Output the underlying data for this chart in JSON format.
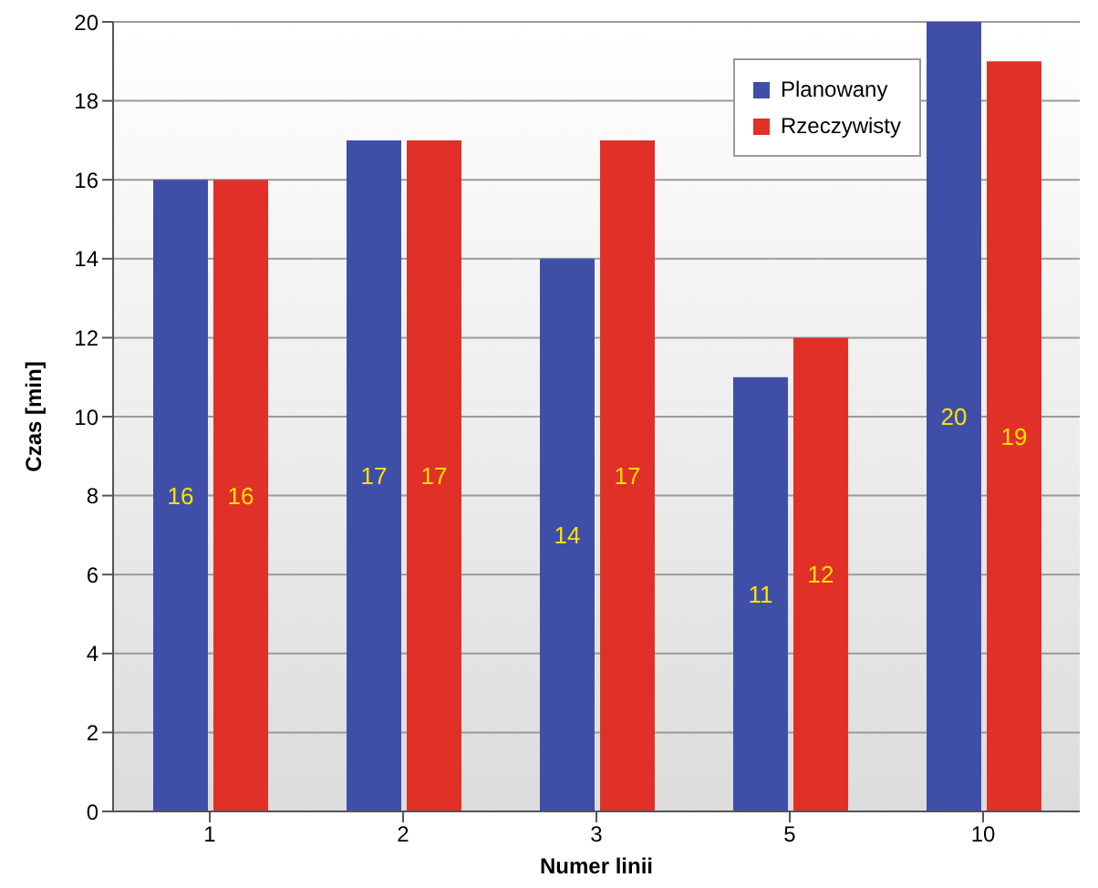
{
  "chart_data": {
    "type": "bar",
    "xlabel": "Numer linii",
    "ylabel": "Czas [min]",
    "categories": [
      "1",
      "2",
      "3",
      "5",
      "10"
    ],
    "series": [
      {
        "name": "Planowany",
        "color": "#3f4fa8",
        "values": [
          16,
          17,
          14,
          11,
          20
        ]
      },
      {
        "name": "Rzeczywisty",
        "color": "#e03028",
        "values": [
          16,
          17,
          17,
          12,
          19
        ]
      }
    ],
    "ylim": [
      0,
      20
    ],
    "yticks": [
      0,
      2,
      4,
      6,
      8,
      10,
      12,
      14,
      16,
      18,
      20
    ],
    "grid": "y",
    "legend": "top right",
    "data_labels": true
  }
}
